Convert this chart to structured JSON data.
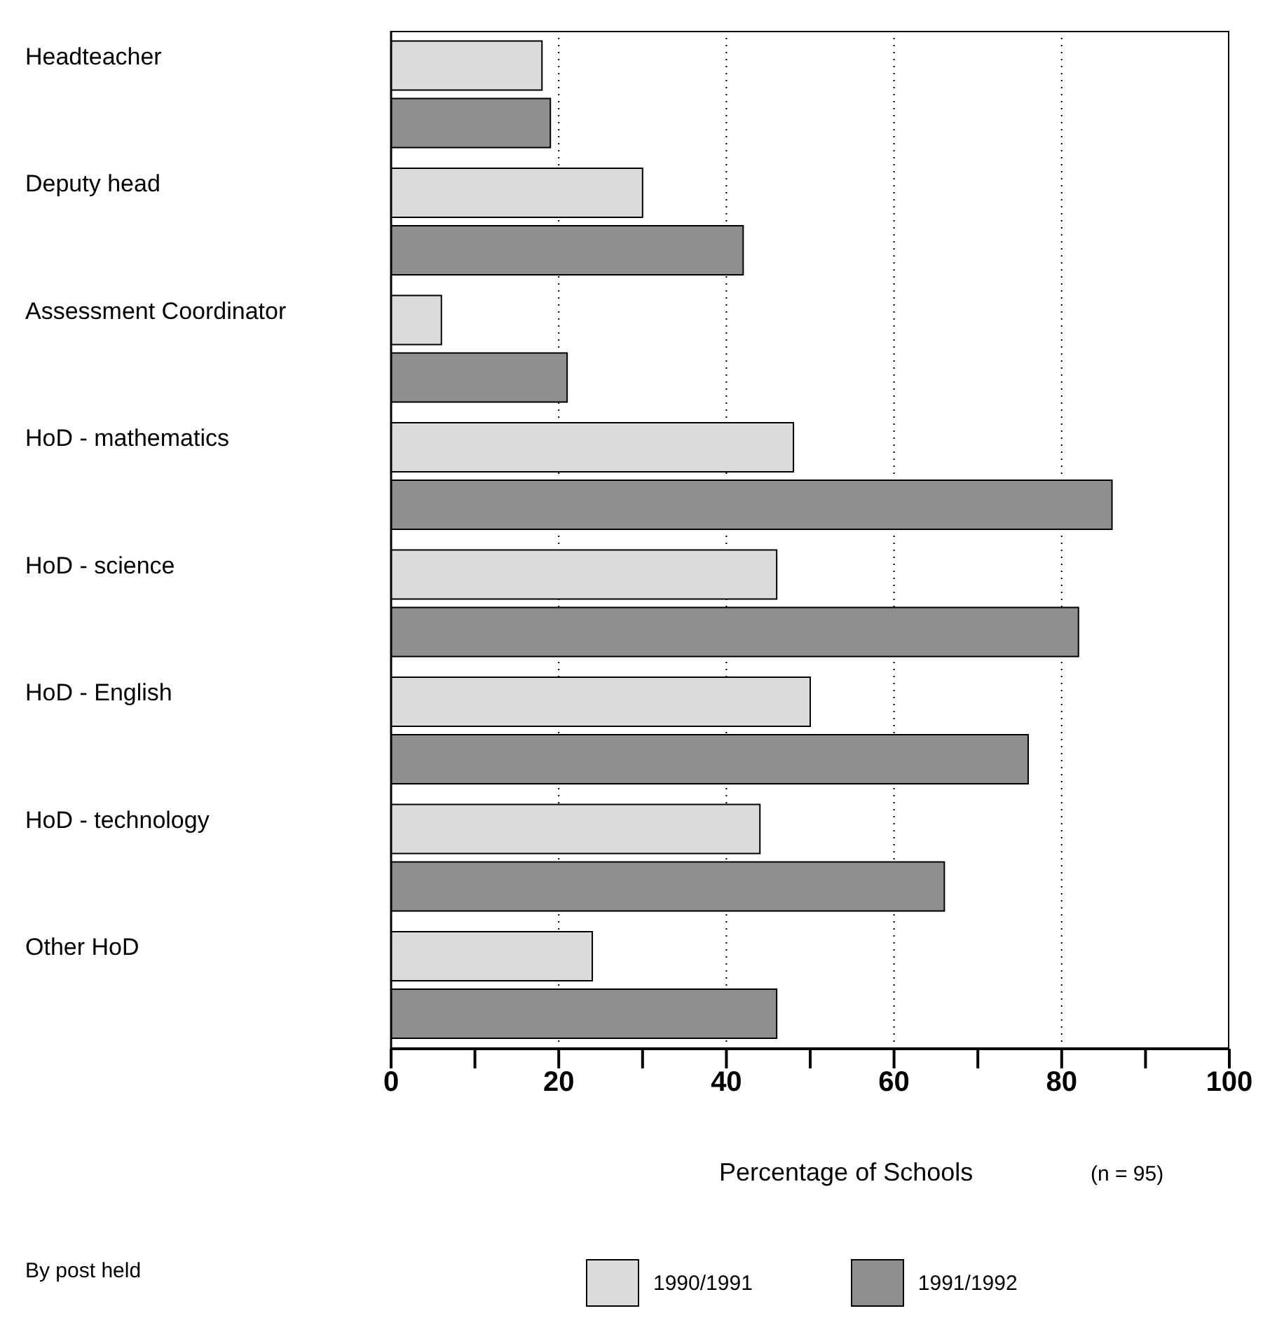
{
  "chart_data": {
    "type": "bar",
    "orientation": "horizontal",
    "xlabel": "Percentage of Schools",
    "categories": [
      "Headteacher",
      "Deputy head",
      "Assessment Coordinator",
      "HoD - mathematics",
      "HoD - science",
      "HoD - English",
      "HoD - technology",
      "Other HoD"
    ],
    "series": [
      {
        "name": "1990/1991",
        "color": "#dcdcdc",
        "values": [
          18,
          30,
          6,
          48,
          46,
          50,
          44,
          24
        ]
      },
      {
        "name": "1991/1992",
        "color": "#8f8f8f",
        "values": [
          19,
          42,
          21,
          86,
          82,
          76,
          66,
          46
        ]
      }
    ],
    "xlim": [
      0,
      100
    ],
    "xticks": [
      0,
      {
        "value": 10,
        "label": null
      },
      20,
      {
        "value": 30,
        "label": null
      },
      40,
      {
        "value": 50,
        "label": null
      },
      60,
      {
        "value": 70,
        "label": null
      },
      80,
      {
        "value": 90,
        "label": null
      },
      100
    ],
    "grid": "x",
    "legend": "bottom",
    "annotations": [
      "(n = 95)",
      "By post held"
    ]
  }
}
